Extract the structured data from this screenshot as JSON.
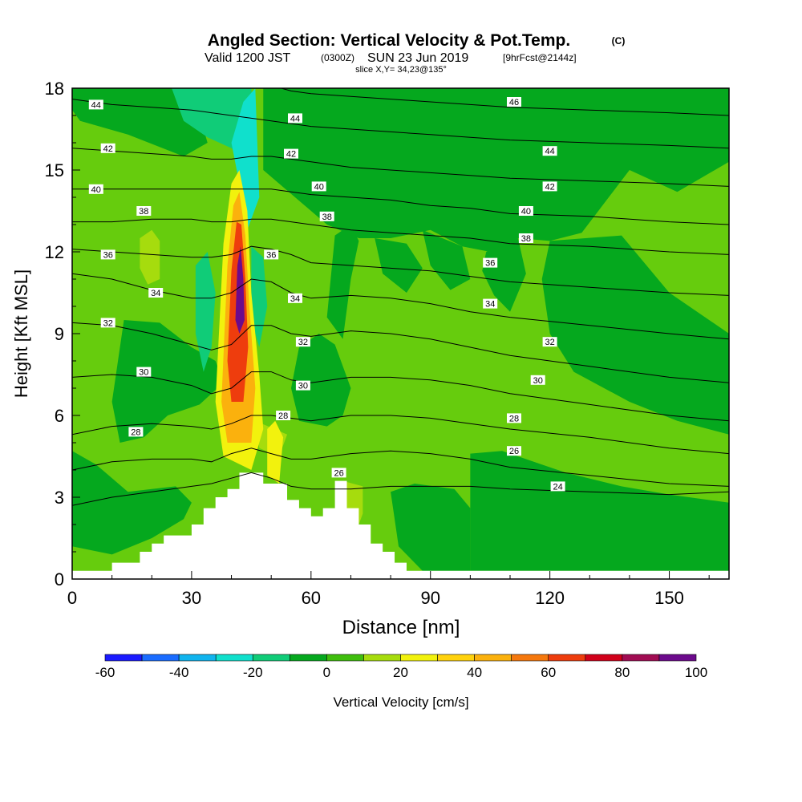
{
  "chart_data": {
    "type": "heatmap",
    "title": "Angled Section: Vertical Velocity & Pot.Temp.",
    "title_unit": "(C)",
    "subtitle_parts": [
      "Valid 1200 JST",
      "(0300Z)",
      "SUN 23 Jun 2019",
      "[9hrFcst@2144z]"
    ],
    "slice_label": "slice X,Y= 34,23@135°",
    "xlabel": "Distance [nm]",
    "ylabel": "Height [Kft MSL]",
    "xlim": [
      0,
      165
    ],
    "ylim": [
      0,
      18
    ],
    "x_ticks": [
      0,
      30,
      60,
      90,
      120,
      150
    ],
    "x_tick_labels": [
      "0",
      "30",
      "60",
      "90",
      "120",
      "150"
    ],
    "y_ticks": [
      0,
      3,
      6,
      9,
      12,
      15,
      18
    ],
    "y_tick_labels": [
      "0",
      "3",
      "6",
      "9",
      "12",
      "15",
      "18"
    ],
    "colorbar": {
      "label": "Vertical Velocity [cm/s]",
      "levels": [
        -60,
        -50,
        -40,
        -30,
        -20,
        -10,
        0,
        10,
        20,
        30,
        40,
        50,
        60,
        70,
        80,
        90,
        100
      ],
      "tick_labels": [
        "-60",
        "-40",
        "-20",
        "0",
        "20",
        "40",
        "60",
        "80",
        "100"
      ],
      "colors": [
        "#1a1aff",
        "#1a6cff",
        "#10b4ee",
        "#10e0cc",
        "#10cc78",
        "#05a81e",
        "#3fbe0d",
        "#a6dc0d",
        "#f2f20d",
        "#ffd20d",
        "#fbb10d",
        "#f5780d",
        "#ee3d0d",
        "#d1001a",
        "#a10c53",
        "#6c0a8c"
      ]
    },
    "field_colors": {
      "background": "#66cc0d",
      "neg_weak": "#05a81e",
      "neg_moderate": "#10cc78",
      "neg_strong": "#10e0cc",
      "pos_weak": "#a6dc0d",
      "pos_yellow": "#f2f20d",
      "pos_orange": "#fbb10d",
      "pos_red": "#ee3d0d",
      "pos_max": "#6c0a8c",
      "terrain": "#ffffff"
    },
    "terrain_profile": {
      "x": [
        0,
        10,
        10,
        17,
        17,
        20,
        20,
        23,
        23,
        30,
        30,
        33,
        33,
        36,
        36,
        39,
        39,
        42,
        42,
        48,
        48,
        54,
        54,
        57,
        57,
        60,
        60,
        63,
        63,
        66,
        66,
        69,
        69,
        72,
        72,
        75,
        75,
        78,
        78,
        81,
        81,
        84,
        84,
        87,
        87,
        165
      ],
      "y": [
        0.3,
        0.3,
        0.6,
        0.6,
        1.0,
        1.0,
        1.3,
        1.3,
        1.6,
        1.6,
        2.0,
        2.0,
        2.6,
        2.6,
        3.0,
        3.0,
        3.3,
        3.3,
        3.9,
        3.9,
        3.5,
        3.5,
        2.9,
        2.9,
        2.6,
        2.6,
        2.3,
        2.3,
        2.6,
        2.6,
        3.6,
        3.6,
        2.6,
        2.6,
        2.0,
        2.0,
        1.3,
        1.3,
        1.0,
        1.0,
        0.6,
        0.6,
        0.3,
        0.3,
        0.3,
        0.3
      ]
    },
    "theta_isentropes": [
      {
        "label": "24",
        "y_at_x": [
          2.7,
          3.0,
          3.2,
          3.4,
          3.5,
          3.7,
          3.9,
          3.7,
          3.4,
          3.3,
          3.3,
          3.4,
          3.4,
          3.4,
          3.3,
          3.2,
          3.1,
          3.2
        ]
      },
      {
        "label": "26",
        "y_at_x": [
          4.0,
          4.3,
          4.4,
          4.4,
          4.3,
          4.6,
          4.8,
          4.6,
          4.4,
          4.4,
          4.6,
          4.7,
          4.6,
          4.4,
          4.1,
          3.8,
          3.5,
          3.4
        ]
      },
      {
        "label": "28",
        "y_at_x": [
          5.3,
          5.6,
          5.7,
          5.6,
          5.5,
          5.7,
          6.0,
          6.0,
          5.9,
          5.8,
          6.0,
          6.0,
          5.9,
          5.7,
          5.5,
          5.2,
          4.8,
          4.6
        ]
      },
      {
        "label": "30",
        "y_at_x": [
          7.4,
          7.5,
          7.4,
          7.1,
          6.8,
          7.0,
          7.6,
          7.6,
          7.3,
          7.2,
          7.4,
          7.4,
          7.3,
          7.1,
          6.8,
          6.4,
          6.0,
          5.8
        ]
      },
      {
        "label": "32",
        "y_at_x": [
          9.4,
          9.3,
          9.0,
          8.6,
          8.4,
          8.6,
          9.3,
          9.3,
          9.0,
          8.9,
          9.1,
          9.0,
          8.8,
          8.5,
          8.2,
          7.8,
          7.4,
          7.2
        ]
      },
      {
        "label": "34",
        "y_at_x": [
          11.2,
          11.0,
          10.6,
          10.3,
          10.3,
          10.5,
          11.0,
          10.9,
          10.5,
          10.3,
          10.4,
          10.3,
          10.1,
          9.8,
          9.6,
          9.3,
          9.0,
          8.8
        ]
      },
      {
        "label": "36",
        "y_at_x": [
          12.1,
          12.0,
          11.9,
          11.8,
          11.8,
          11.9,
          12.2,
          12.1,
          11.9,
          11.6,
          11.5,
          11.4,
          11.3,
          11.1,
          10.9,
          10.7,
          10.5,
          10.4
        ]
      },
      {
        "label": "38",
        "y_at_x": [
          13.1,
          13.1,
          13.2,
          13.2,
          13.1,
          13.1,
          13.2,
          13.2,
          13.1,
          13.0,
          12.8,
          12.7,
          12.6,
          12.5,
          12.3,
          12.2,
          12.0,
          11.9
        ]
      },
      {
        "label": "40",
        "y_at_x": [
          14.3,
          14.3,
          14.3,
          14.3,
          14.3,
          14.3,
          14.3,
          14.3,
          14.2,
          14.1,
          14.0,
          13.9,
          13.7,
          13.6,
          13.4,
          13.3,
          13.1,
          13.0
        ]
      },
      {
        "label": "42",
        "y_at_x": [
          15.8,
          15.7,
          15.6,
          15.5,
          15.4,
          15.4,
          15.5,
          15.5,
          15.4,
          15.3,
          15.1,
          15.0,
          14.9,
          14.8,
          14.7,
          14.6,
          14.5,
          14.4
        ]
      },
      {
        "label": "44",
        "y_at_x": [
          17.6,
          17.4,
          17.3,
          17.2,
          17.1,
          17.0,
          16.9,
          16.8,
          16.7,
          16.6,
          16.5,
          16.4,
          16.3,
          16.2,
          16.1,
          16.0,
          15.9,
          15.8
        ]
      },
      {
        "label": "46",
        "y_at_x": [
          19.4,
          19.2,
          19.0,
          18.8,
          18.6,
          18.4,
          18.2,
          18.1,
          17.9,
          17.8,
          17.7,
          17.6,
          17.5,
          17.4,
          17.3,
          17.2,
          17.1,
          17.0
        ]
      }
    ],
    "theta_x_grid": [
      0,
      10,
      20,
      30,
      35,
      40,
      45,
      50,
      55,
      60,
      70,
      80,
      90,
      100,
      110,
      130,
      150,
      165
    ],
    "theta_label_positions": [
      {
        "label": "44",
        "x": 6,
        "y": 17.4
      },
      {
        "label": "42",
        "x": 9,
        "y": 15.8
      },
      {
        "label": "40",
        "x": 6,
        "y": 14.3
      },
      {
        "label": "38",
        "x": 18,
        "y": 13.5
      },
      {
        "label": "36",
        "x": 9,
        "y": 11.9
      },
      {
        "label": "34",
        "x": 21,
        "y": 10.5
      },
      {
        "label": "32",
        "x": 9,
        "y": 9.4
      },
      {
        "label": "30",
        "x": 18,
        "y": 7.6
      },
      {
        "label": "28",
        "x": 16,
        "y": 5.4
      },
      {
        "label": "44",
        "x": 56,
        "y": 16.9
      },
      {
        "label": "42",
        "x": 55,
        "y": 15.6
      },
      {
        "label": "40",
        "x": 62,
        "y": 14.4
      },
      {
        "label": "38",
        "x": 64,
        "y": 13.3
      },
      {
        "label": "36",
        "x": 50,
        "y": 11.9
      },
      {
        "label": "34",
        "x": 56,
        "y": 10.3
      },
      {
        "label": "32",
        "x": 58,
        "y": 8.7
      },
      {
        "label": "30",
        "x": 58,
        "y": 7.1
      },
      {
        "label": "28",
        "x": 53,
        "y": 6.0
      },
      {
        "label": "26",
        "x": 67,
        "y": 3.9
      },
      {
        "label": "46",
        "x": 111,
        "y": 17.5
      },
      {
        "label": "44",
        "x": 120,
        "y": 15.7
      },
      {
        "label": "42",
        "x": 120,
        "y": 14.4
      },
      {
        "label": "40",
        "x": 114,
        "y": 13.5
      },
      {
        "label": "38",
        "x": 114,
        "y": 12.5
      },
      {
        "label": "36",
        "x": 105,
        "y": 11.6
      },
      {
        "label": "34",
        "x": 105,
        "y": 10.1
      },
      {
        "label": "32",
        "x": 120,
        "y": 8.7
      },
      {
        "label": "30",
        "x": 117,
        "y": 7.3
      },
      {
        "label": "28",
        "x": 111,
        "y": 5.9
      },
      {
        "label": "26",
        "x": 111,
        "y": 4.7
      },
      {
        "label": "24",
        "x": 122,
        "y": 3.4
      }
    ],
    "grid": false,
    "legend": "colorbar-bottom"
  }
}
